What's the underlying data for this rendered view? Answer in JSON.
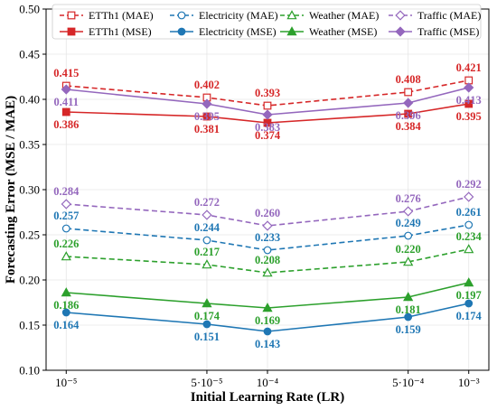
{
  "chart_data": {
    "type": "line",
    "xlabel": "Initial Learning Rate (LR)",
    "ylabel": "Forecasting Error (MSE / MAE)",
    "x": [
      1e-05,
      5e-05,
      0.0001,
      0.0005,
      0.001
    ],
    "xscale": "log",
    "x_tick_labels": [
      "10⁻⁵",
      "5·10⁻⁵",
      "10⁻⁴",
      "5·10⁻⁴",
      "10⁻³"
    ],
    "ylim": [
      0.1,
      0.5
    ],
    "y_tick_labels": [
      "0.10",
      "0.15",
      "0.20",
      "0.25",
      "0.30",
      "0.35",
      "0.40",
      "0.45",
      "0.50"
    ],
    "grid": true,
    "legend_position": "top",
    "series": [
      {
        "name": "ETTh1 (MAE)",
        "color": "#d62728",
        "style": "dashed",
        "marker": "open-square",
        "values": [
          0.415,
          0.402,
          0.393,
          0.408,
          0.421
        ],
        "labels": [
          "0.415",
          "0.402",
          "0.393",
          "0.408",
          "0.421"
        ],
        "label_pos": "above"
      },
      {
        "name": "ETTh1 (MSE)",
        "color": "#d62728",
        "style": "solid",
        "marker": "filled-square",
        "values": [
          0.386,
          0.381,
          0.374,
          0.384,
          0.395
        ],
        "labels": [
          "0.386",
          "0.381",
          "0.374",
          "0.384",
          "0.395"
        ],
        "label_pos": "below"
      },
      {
        "name": "Electricity (MAE)",
        "color": "#1f77b4",
        "style": "dashed",
        "marker": "open-circle",
        "values": [
          0.257,
          0.244,
          0.233,
          0.249,
          0.261
        ],
        "labels": [
          "0.257",
          "0.244",
          "0.233",
          "0.249",
          "0.261"
        ],
        "label_pos": "above"
      },
      {
        "name": "Electricity (MSE)",
        "color": "#1f77b4",
        "style": "solid",
        "marker": "filled-circle",
        "values": [
          0.164,
          0.151,
          0.143,
          0.159,
          0.174
        ],
        "labels": [
          "0.164",
          "0.151",
          "0.143",
          "0.159",
          "0.174"
        ],
        "label_pos": "below"
      },
      {
        "name": "Weather (MAE)",
        "color": "#2ca02c",
        "style": "dashed",
        "marker": "open-triangle",
        "values": [
          0.226,
          0.217,
          0.208,
          0.22,
          0.234
        ],
        "labels": [
          "0.226",
          "0.217",
          "0.208",
          "0.220",
          "0.234"
        ],
        "label_pos": "above"
      },
      {
        "name": "Weather (MSE)",
        "color": "#2ca02c",
        "style": "solid",
        "marker": "filled-triangle",
        "values": [
          0.186,
          0.174,
          0.169,
          0.181,
          0.197
        ],
        "labels": [
          "0.186",
          "0.174",
          "0.169",
          "0.181",
          "0.197"
        ],
        "label_pos": "below"
      },
      {
        "name": "Traffic (MAE)",
        "color": "#9467bd",
        "style": "dashed",
        "marker": "open-diamond",
        "values": [
          0.284,
          0.272,
          0.26,
          0.276,
          0.292
        ],
        "labels": [
          "0.284",
          "0.272",
          "0.260",
          "0.276",
          "0.292"
        ],
        "label_pos": "above"
      },
      {
        "name": "Traffic (MSE)",
        "color": "#9467bd",
        "style": "solid",
        "marker": "filled-diamond",
        "values": [
          0.411,
          0.395,
          0.383,
          0.396,
          0.413
        ],
        "labels": [
          "0.411",
          "0.395",
          "0.383",
          "0.396",
          "0.413"
        ],
        "label_pos": "below"
      }
    ]
  }
}
